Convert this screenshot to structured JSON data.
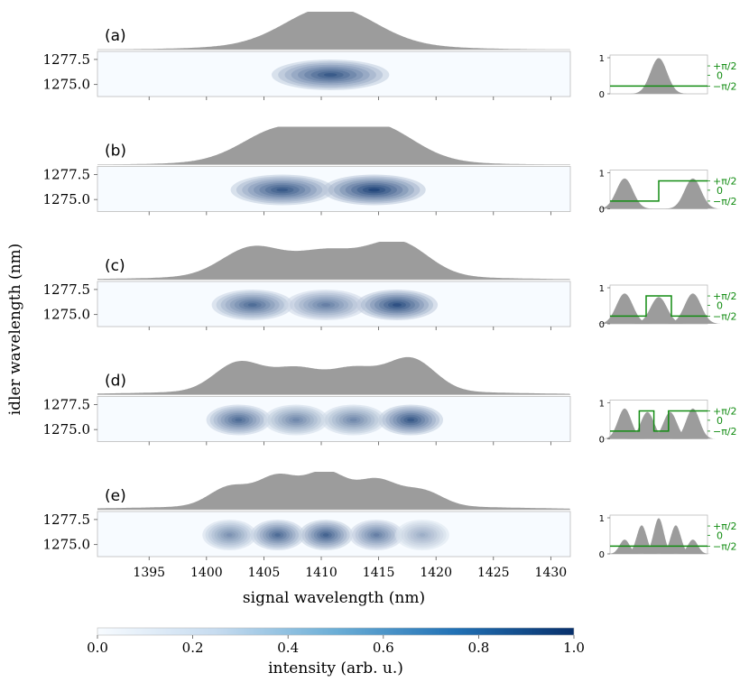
{
  "figure": {
    "ylabel": "idler wavelength (nm)",
    "xlabel": "signal wavelength (nm)",
    "colorbar": {
      "label": "intensity (arb. u.)",
      "colormap": "Blues",
      "range": [
        0.0,
        1.0
      ],
      "ticks": [
        "0.0",
        "0.2",
        "0.4",
        "0.6",
        "0.8",
        "1.0"
      ],
      "tick_values": [
        0.0,
        0.2,
        0.4,
        0.6,
        0.8,
        1.0
      ]
    },
    "colors": {
      "marginal_fill": "#9c9c9c",
      "heat_low": "#f7fbff",
      "heat_high": "#08306b",
      "phase_line": "#128c12",
      "phase_label": "#128c12"
    },
    "xaxis": {
      "range": [
        1390.5,
        1431.7
      ],
      "ticks": [
        1395,
        1400,
        1405,
        1410,
        1415,
        1420,
        1425,
        1430
      ],
      "tick_labels": [
        "1395",
        "1400",
        "1405",
        "1410",
        "1415",
        "1420",
        "1425",
        "1430"
      ]
    },
    "yaxis": {
      "range": [
        1273.8,
        1278.3
      ],
      "ticks": [
        1277.5,
        1275.0
      ],
      "tick_labels": [
        "1277.5",
        "1275.0"
      ]
    }
  },
  "chart_data": [
    {
      "type": "heatmap",
      "panel_label": "(a)",
      "lobe_centers_nm": [
        1410.8
      ],
      "lobe_peaks": [
        0.85
      ],
      "marginal_peaks": [
        1.0
      ],
      "inset": {
        "type": "area",
        "yticks": [
          "1",
          "0"
        ],
        "phase_ticks": [
          "+π/2",
          "0",
          "−π/2"
        ],
        "pulse_peaks": [
          1.0
        ],
        "phase_steps": [
          {
            "from": 0,
            "to": 1,
            "phase": "-π/2"
          }
        ]
      }
    },
    {
      "type": "heatmap",
      "panel_label": "(b)",
      "lobe_centers_nm": [
        1406.6,
        1414.6
      ],
      "lobe_peaks": [
        0.85,
        0.95
      ],
      "marginal_peaks": [
        0.85,
        0.95
      ],
      "inset": {
        "type": "area",
        "yticks": [
          "1",
          "0"
        ],
        "phase_ticks": [
          "+π/2",
          "0",
          "−π/2"
        ],
        "pulse_peaks": [
          0.85,
          0.85
        ],
        "phase_steps": [
          {
            "from": 0,
            "to": 0.5,
            "phase": "-π/2"
          },
          {
            "from": 0.5,
            "to": 1,
            "phase": "+π/2"
          }
        ]
      }
    },
    {
      "type": "heatmap",
      "panel_label": "(c)",
      "lobe_centers_nm": [
        1404.0,
        1410.4,
        1416.6
      ],
      "lobe_peaks": [
        0.75,
        0.65,
        0.9
      ],
      "marginal_peaks": [
        0.75,
        0.6,
        0.9
      ],
      "inset": {
        "type": "area",
        "yticks": [
          "1",
          "0"
        ],
        "phase_ticks": [
          "+π/2",
          "0",
          "−π/2"
        ],
        "pulse_peaks": [
          0.85,
          0.75,
          0.85
        ],
        "phase_steps": [
          {
            "from": 0,
            "to": 0.37,
            "phase": "-π/2"
          },
          {
            "from": 0.37,
            "to": 0.63,
            "phase": "+π/2"
          },
          {
            "from": 0.63,
            "to": 1,
            "phase": "-π/2"
          }
        ]
      }
    },
    {
      "type": "heatmap",
      "panel_label": "(d)",
      "lobe_centers_nm": [
        1402.8,
        1407.8,
        1412.8,
        1417.8
      ],
      "lobe_peaks": [
        0.75,
        0.6,
        0.6,
        0.85
      ],
      "marginal_peaks": [
        0.75,
        0.55,
        0.55,
        0.85
      ],
      "inset": {
        "type": "area",
        "yticks": [
          "1",
          "0"
        ],
        "phase_ticks": [
          "+π/2",
          "0",
          "−π/2"
        ],
        "pulse_peaks": [
          0.85,
          0.75,
          0.75,
          0.85
        ],
        "phase_steps": [
          {
            "from": 0,
            "to": 0.3,
            "phase": "-π/2"
          },
          {
            "from": 0.3,
            "to": 0.45,
            "phase": "+π/2"
          },
          {
            "from": 0.45,
            "to": 0.6,
            "phase": "-π/2"
          },
          {
            "from": 0.6,
            "to": 1,
            "phase": "+π/2"
          }
        ]
      }
    },
    {
      "type": "heatmap",
      "panel_label": "(e)",
      "lobe_centers_nm": [
        1402.0,
        1406.2,
        1410.4,
        1414.8,
        1418.8
      ],
      "lobe_peaks": [
        0.55,
        0.75,
        0.8,
        0.65,
        0.4
      ],
      "marginal_peaks": [
        0.5,
        0.75,
        0.85,
        0.65,
        0.4
      ],
      "inset": {
        "type": "area",
        "yticks": [
          "1",
          "0"
        ],
        "phase_ticks": [
          "+π/2",
          "0",
          "−π/2"
        ],
        "pulse_peaks": [
          0.4,
          0.8,
          1.0,
          0.8,
          0.4
        ],
        "phase_steps": [
          {
            "from": 0,
            "to": 1,
            "phase": "-π/2"
          }
        ]
      }
    }
  ]
}
